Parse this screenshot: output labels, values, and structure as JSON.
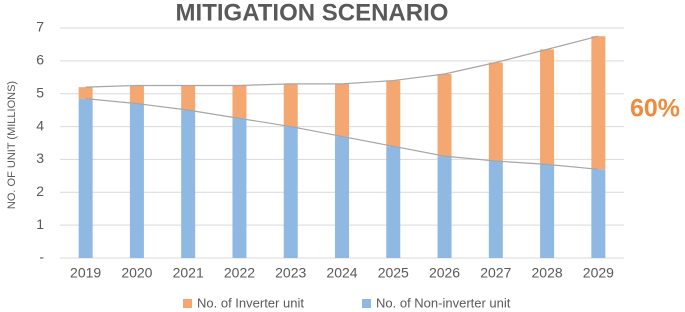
{
  "chart_data": {
    "type": "stacked_bar",
    "title": "MITIGATION SCENARIO",
    "y_label": "NO. OF UNIT (MILLIONS)",
    "annotation": "60%",
    "annotation_color": "#f08a3c",
    "categories": [
      "2019",
      "2020",
      "2021",
      "2022",
      "2023",
      "2024",
      "2025",
      "2026",
      "2027",
      "2028",
      "2029"
    ],
    "series": [
      {
        "name": "No. of Inverter unit",
        "color": "#f5a772",
        "values": [
          0.35,
          0.55,
          0.75,
          1.0,
          1.3,
          1.6,
          2.0,
          2.5,
          3.0,
          3.5,
          4.05
        ]
      },
      {
        "name": "No. of Non-inverter unit",
        "color": "#8fb9e3",
        "values": [
          4.85,
          4.7,
          4.5,
          4.25,
          4.0,
          3.7,
          3.4,
          3.1,
          2.95,
          2.85,
          2.7
        ]
      }
    ],
    "ylim": [
      0,
      7
    ],
    "yticks": [
      {
        "value": 0,
        "label": "-"
      },
      1,
      2,
      3,
      4,
      5,
      6,
      7
    ],
    "grid": true,
    "trend_lines": true
  }
}
